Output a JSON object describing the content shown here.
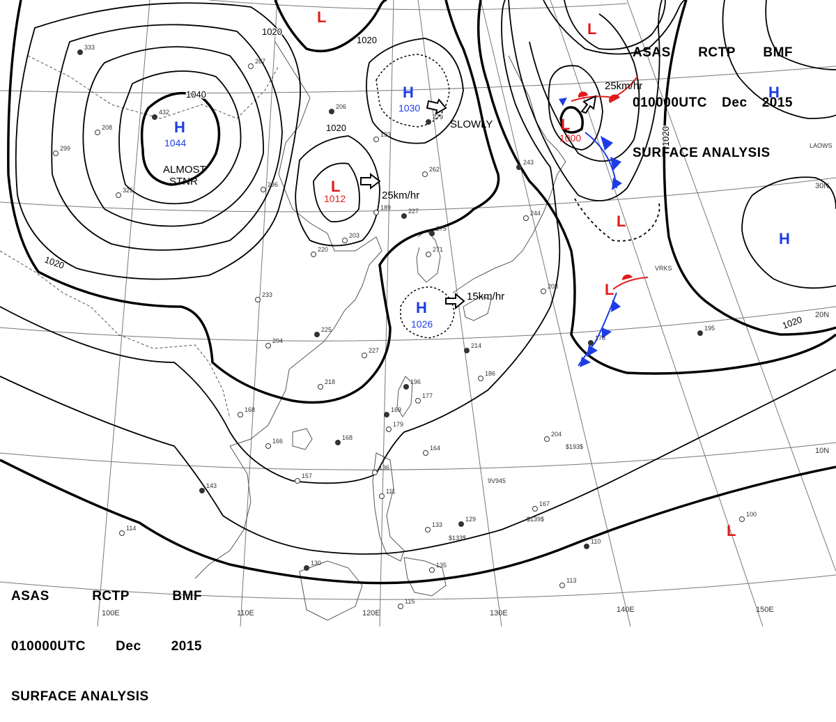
{
  "header": {
    "agency": "ASAS",
    "station": "RCTP",
    "code": "BMF",
    "time": "010000UTC",
    "month": "Dec",
    "year": "2015",
    "product": "SURFACE ANALYSIS"
  },
  "colors": {
    "high": "#1e3ce6",
    "low": "#e11b1b",
    "isobar": "#000000",
    "coast": "#555555",
    "grid": "#777777"
  },
  "pressure_systems": [
    {
      "type": "H",
      "value": "1044",
      "note1": "ALMOST",
      "note2": "STNR"
    },
    {
      "type": "L",
      "value": "1012",
      "motion": "25km/hr"
    },
    {
      "type": "H",
      "value": "1030",
      "motion": "SLOWLY"
    },
    {
      "type": "H",
      "value": "1026",
      "motion": "15km/hr"
    },
    {
      "type": "L",
      "value": "1000",
      "motion": "25km/hr"
    },
    {
      "type": "L",
      "value": ""
    },
    {
      "type": "L",
      "value": ""
    },
    {
      "type": "L",
      "value": ""
    },
    {
      "type": "H",
      "value": ""
    },
    {
      "type": "H",
      "value": ""
    }
  ],
  "isobar_labels": [
    "1040",
    "1020",
    "1020",
    "1020",
    "1020",
    "1020",
    "1020"
  ],
  "longitude_labels": [
    "100E",
    "110E",
    "120E",
    "130E",
    "140E",
    "150E"
  ],
  "latitude_labels": [
    "30N",
    "20N",
    "10N"
  ],
  "station_labels": [
    "LAOWS",
    "VRKS",
    "9V945",
    "$193$",
    "$139$",
    "$133$"
  ],
  "station_values": [
    "333",
    "267",
    "208",
    "432",
    "299",
    "325",
    "206",
    "193",
    "262",
    "279",
    "296",
    "189",
    "227",
    "220",
    "203",
    "275",
    "271",
    "233",
    "225",
    "204",
    "227",
    "214",
    "186",
    "218",
    "196",
    "177",
    "168",
    "169",
    "179",
    "166",
    "168",
    "164",
    "157",
    "143",
    "136",
    "111",
    "129",
    "133",
    "135",
    "130",
    "114",
    "115",
    "110",
    "113",
    "100",
    "195",
    "204",
    "167",
    "178",
    "208",
    "244",
    "243"
  ]
}
